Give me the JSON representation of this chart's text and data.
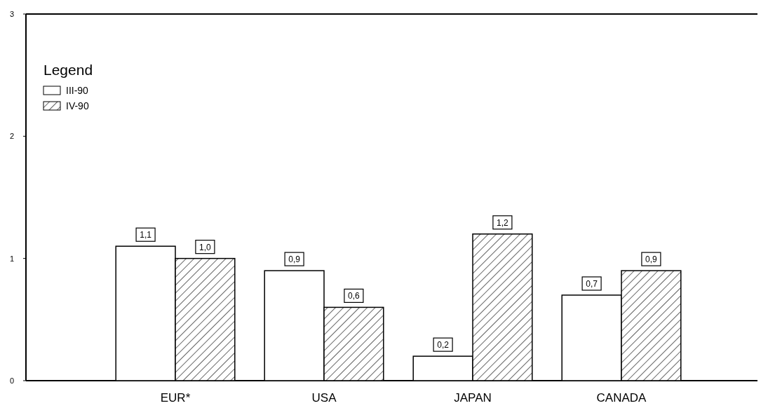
{
  "chart_data": {
    "type": "bar",
    "categories": [
      "EUR*",
      "USA",
      "JAPAN",
      "CANADA"
    ],
    "series": [
      {
        "name": "III-90",
        "color": "#ffffff",
        "values": [
          1.1,
          0.9,
          0.2,
          0.7
        ],
        "value_labels": [
          "1,1",
          "0,9",
          "0,2",
          "0,7"
        ]
      },
      {
        "name": "IV-90",
        "color": "#000000",
        "values": [
          1.0,
          0.6,
          1.2,
          0.9
        ],
        "value_labels": [
          "1,0",
          "0,6",
          "1,2",
          "0,9"
        ]
      }
    ],
    "ylim": [
      0,
      3
    ],
    "yticks": [
      0,
      1,
      2,
      3
    ],
    "grid": false,
    "legend": "top left",
    "legend_title": "Legend"
  }
}
